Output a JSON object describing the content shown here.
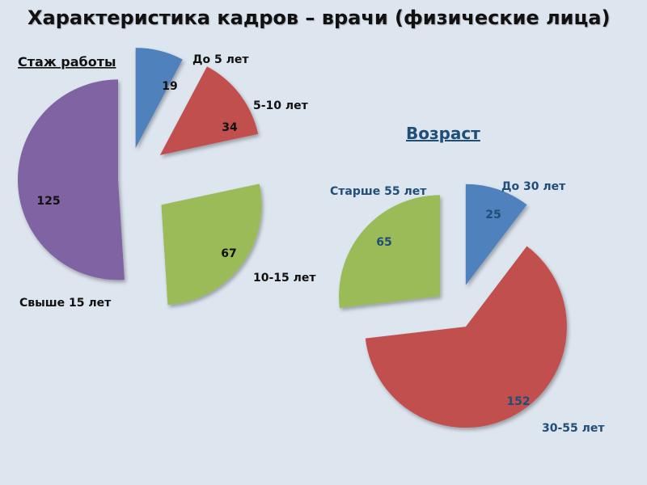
{
  "page": {
    "title": "Характеристика кадров – врачи (физические лица)"
  },
  "chart_data": [
    {
      "type": "pie",
      "title": "Стаж работы",
      "categories": [
        "До 5 лет",
        "5-10 лет",
        "10-15 лет",
        "Свыше 15 лет"
      ],
      "values": [
        19,
        34,
        67,
        125
      ],
      "colors": [
        "#4f81bd",
        "#c0504d",
        "#9bbb59",
        "#8064a2"
      ],
      "exploded": true
    },
    {
      "type": "pie",
      "title": "Возраст",
      "categories": [
        "До 30 лет",
        "30-55 лет",
        "Старше 55 лет"
      ],
      "values": [
        25,
        152,
        65
      ],
      "colors": [
        "#4f81bd",
        "#c0504d",
        "#9bbb59"
      ],
      "exploded": true
    }
  ]
}
